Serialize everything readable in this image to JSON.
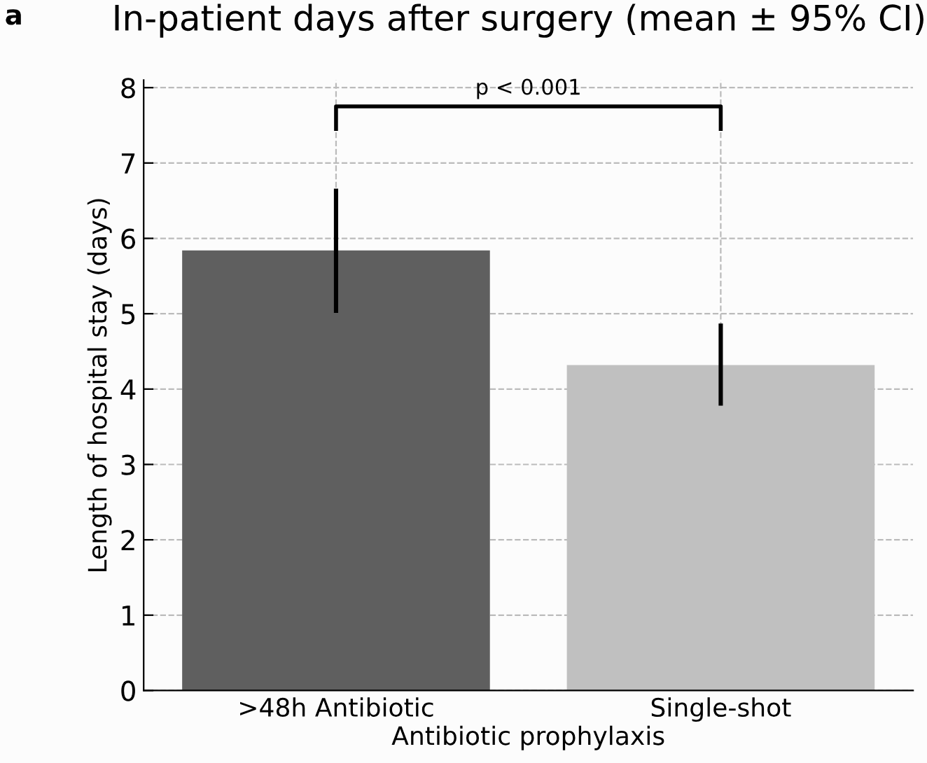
{
  "chart_data": {
    "type": "bar",
    "title": "In-patient days after surgery (mean ± 95% CI)",
    "xlabel": "Antibiotic prophylaxis",
    "ylabel": "Length of hospital stay (days)",
    "categories": [
      ">48h Antibiotic",
      "Single-shot"
    ],
    "values": [
      5.84,
      4.32
    ],
    "colors": [
      "#5f5f5f",
      "#c0c0c0"
    ],
    "errors": [
      [
        5.01,
        6.66
      ],
      [
        3.78,
        4.87
      ]
    ],
    "ylim": [
      0,
      8.1
    ],
    "yticks": [
      0,
      1,
      2,
      3,
      4,
      5,
      6,
      7,
      8
    ],
    "grid": true,
    "annotations": [
      "a",
      "p < 0.001"
    ]
  }
}
